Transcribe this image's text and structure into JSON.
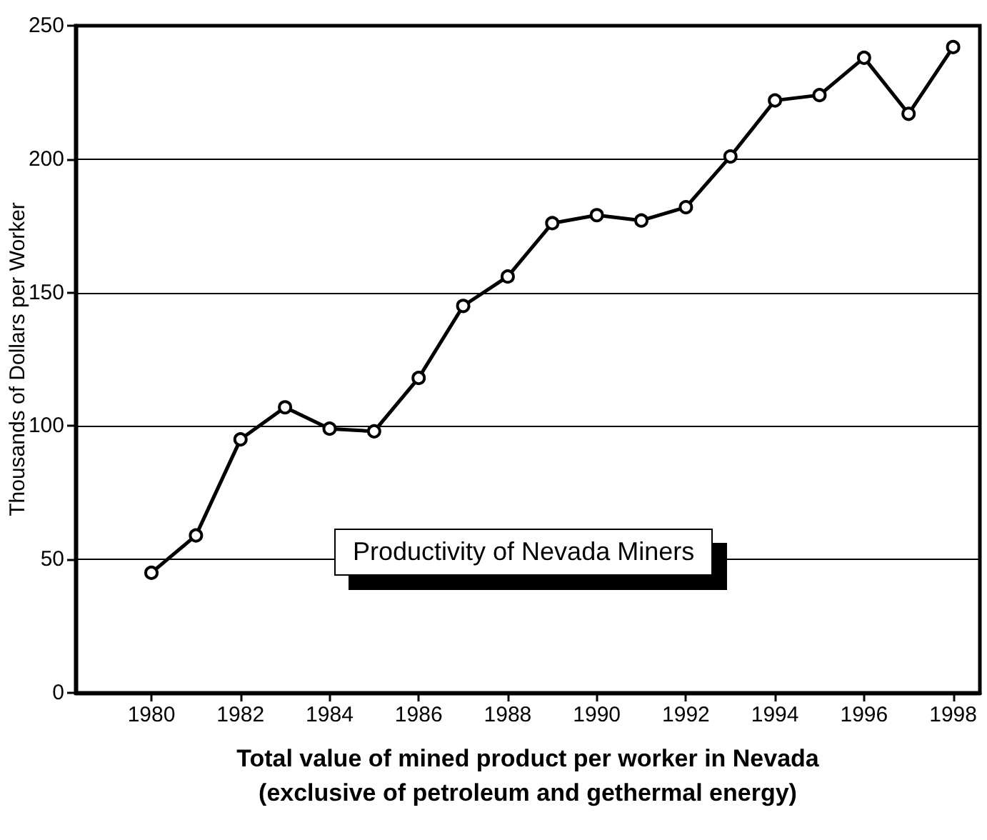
{
  "chart_data": {
    "type": "line",
    "xlabel": "Total value of mined product per worker in Nevada\n(exclusive of petroleum and gethermal energy)",
    "ylabel": "Thousands of Dollars per Worker",
    "annotations": [
      "Productivity of Nevada Miners"
    ],
    "x": [
      1980,
      1981,
      1982,
      1983,
      1984,
      1985,
      1986,
      1987,
      1988,
      1989,
      1990,
      1991,
      1992,
      1993,
      1994,
      1995,
      1996,
      1997,
      1998
    ],
    "series": [
      {
        "color": "#000000",
        "values": [
          45,
          59,
          95,
          107,
          99,
          98,
          118,
          145,
          156,
          176,
          179,
          177,
          182,
          201,
          222,
          224,
          238,
          217,
          242
        ]
      }
    ],
    "xlim": [
      1978.3,
      1998.6
    ],
    "xticks": [
      1980,
      1982,
      1984,
      1986,
      1988,
      1990,
      1992,
      1994,
      1996,
      1998
    ],
    "ylim": [
      0,
      250
    ],
    "yticks": [
      0,
      50,
      100,
      150,
      200,
      250
    ],
    "grid": "y",
    "marker": "circle",
    "line_style": "solid"
  }
}
